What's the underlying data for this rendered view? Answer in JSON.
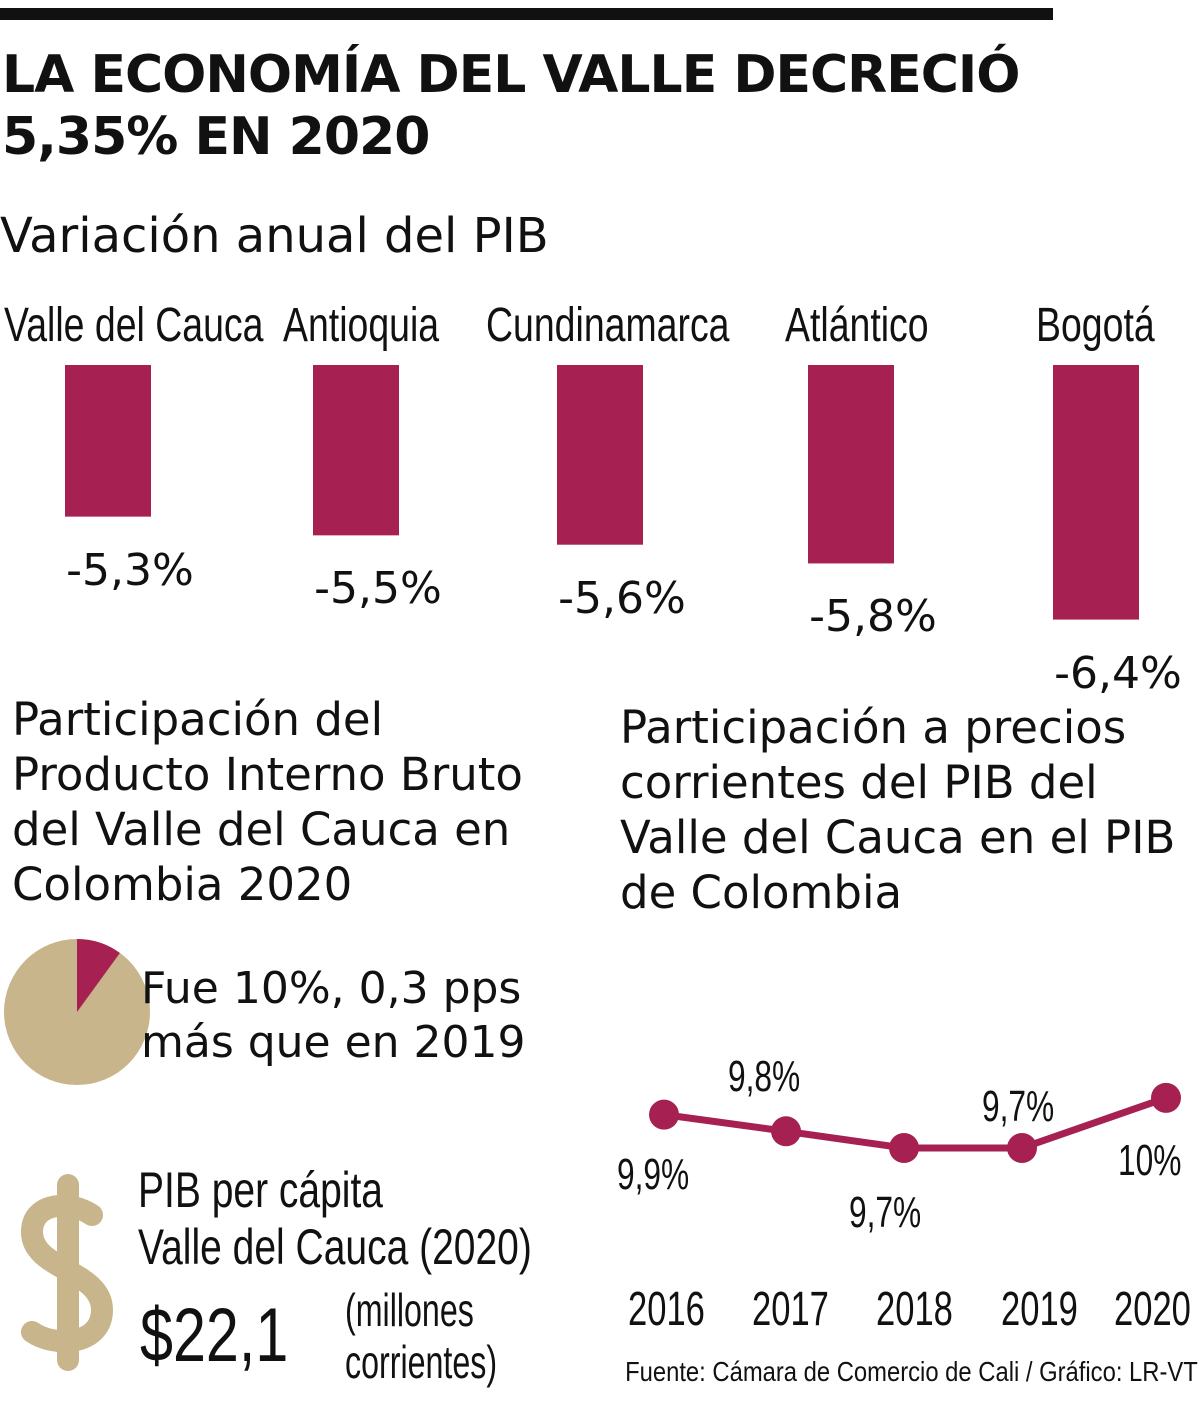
{
  "title": "LA ECONOMÍA DEL VALLE DECRECIÓ 5,35% EN 2020",
  "title_lines": [
    "LA ECONOMÍA DEL VALLE DECRECIÓ",
    "5,35% EN 2020"
  ],
  "colors": {
    "accent": "#a62151",
    "tan": "#c8b58c",
    "text": "#111111"
  },
  "chart_data": [
    {
      "type": "bar",
      "title": "Variación anual del PIB",
      "categories": [
        "Valle del Cauca",
        "Antioquia",
        "Cundinamarca",
        "Atlántico",
        "Bogotá"
      ],
      "values": [
        -5.3,
        -5.5,
        -5.6,
        -5.8,
        -6.4
      ],
      "labels": [
        "-5,3%",
        "-5,5%",
        "-5,6%",
        "-5,8%",
        "-6,4%"
      ],
      "orientation": "downward bars from top",
      "grid": false
    },
    {
      "type": "pie",
      "title": "Participación del Producto Interno Bruto del Valle del Cauca en Colombia 2020",
      "values": [
        10,
        90
      ],
      "caption_lines": [
        "Fue 10%, 0,3 pps",
        "más que en 2019"
      ]
    },
    {
      "type": "line",
      "title": "Participación a precios corrientes del PIB del Valle del Cauca en el PIB de Colombia",
      "x": [
        "2016",
        "2017",
        "2018",
        "2019",
        "2020"
      ],
      "values": [
        9.9,
        9.8,
        9.7,
        9.7,
        10
      ],
      "labels": [
        "9,9%",
        "9,8%",
        "9,7%",
        "9,7%",
        "10%"
      ],
      "grid": false
    }
  ],
  "per_capita": {
    "label_lines": [
      "PIB per cápita",
      "Valle del Cauca (2020)"
    ],
    "value": "$22,1",
    "unit_lines": [
      "(millones",
      "corrientes)"
    ],
    "icon": "dollar-sign-icon"
  },
  "source": "Fuente: Cámara de Comercio de Cali / Gráfico: LR-VT"
}
